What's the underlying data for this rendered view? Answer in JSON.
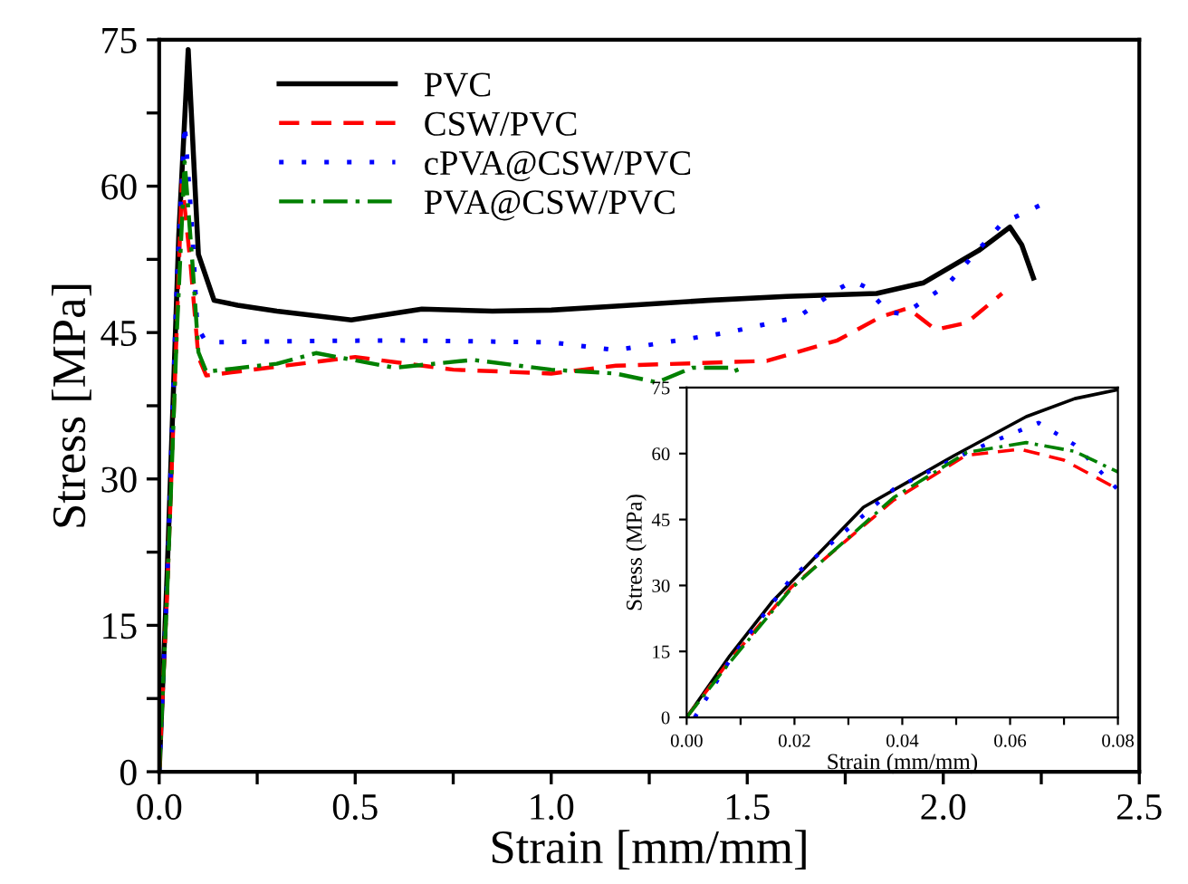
{
  "chart_data": [
    {
      "type": "line",
      "xlabel": "Strain [mm/mm]",
      "ylabel": "Stress [MPa]",
      "xlim": [
        0,
        2.5
      ],
      "ylim": [
        0,
        75
      ],
      "xticks": [
        {
          "value": 0,
          "label": "0.0"
        },
        {
          "value": 0.25,
          "label": null
        },
        {
          "value": 0.5,
          "label": "0.5"
        },
        {
          "value": 0.75,
          "label": null
        },
        {
          "value": 1,
          "label": "1.0"
        },
        {
          "value": 1.25,
          "label": null
        },
        {
          "value": 1.5,
          "label": "1.5"
        },
        {
          "value": 1.75,
          "label": null
        },
        {
          "value": 2,
          "label": "2.0"
        },
        {
          "value": 2.25,
          "label": null
        },
        {
          "value": 2.5,
          "label": "2.5"
        }
      ],
      "yticks": [
        0,
        {
          "value": 7.5,
          "label": null
        },
        15,
        {
          "value": 22.5,
          "label": null
        },
        30,
        {
          "value": 37.5,
          "label": null
        },
        45,
        {
          "value": 52.5,
          "label": null
        },
        60,
        {
          "value": 67.5,
          "label": null
        },
        75
      ],
      "grid": false,
      "legend": "top left",
      "series": [
        {
          "name": "PVC",
          "color": "#000000",
          "line_style": "solid",
          "x": [
            0,
            0.02,
            0.05,
            0.074,
            0.1,
            0.14,
            0.2,
            0.3,
            0.49,
            0.67,
            0.85,
            1.0,
            1.165,
            1.4,
            1.6,
            1.83,
            1.95,
            2.09,
            2.17,
            2.2,
            2.23
          ],
          "values": [
            0,
            20,
            55,
            74,
            53,
            48.3,
            47.8,
            47.2,
            46.3,
            47.4,
            47.2,
            47.3,
            47.7,
            48.3,
            48.7,
            49,
            50.1,
            53.4,
            55.8,
            54,
            50.6
          ]
        },
        {
          "name": "CSW/PVC",
          "color": "#ff0000",
          "line_style": "dashed",
          "x": [
            0,
            0.02,
            0.04,
            0.058,
            0.08,
            0.1,
            0.12,
            0.3,
            0.5,
            0.75,
            1.0,
            1.165,
            1.55,
            1.73,
            1.84,
            1.91,
            1.98,
            2.06,
            2.15
          ],
          "values": [
            0,
            18,
            40,
            60.6,
            52,
            42.5,
            40.6,
            41.5,
            42.5,
            41.2,
            40.8,
            41.6,
            42.1,
            44.2,
            46.6,
            47.5,
            45.3,
            46,
            49
          ]
        },
        {
          "name": "cPVA@CSW/PVC",
          "color": "#0000ff",
          "line_style": "dotted",
          "x": [
            0,
            0.02,
            0.045,
            0.065,
            0.085,
            0.097,
            0.12,
            0.3,
            0.6,
            1.0,
            1.165,
            1.45,
            1.63,
            1.73,
            1.77,
            1.8,
            1.86,
            1.9,
            2.01,
            2.15,
            2.26
          ],
          "values": [
            0,
            19,
            50,
            66.4,
            55,
            45.6,
            44,
            44.1,
            44.2,
            44,
            43.2,
            45,
            46.6,
            49.4,
            50.3,
            49.7,
            47.1,
            46.9,
            49.9,
            56.2,
            58.3
          ]
        },
        {
          "name": "PVA@CSW/PVC",
          "color": "#008000",
          "line_style": "dashdot",
          "x": [
            0,
            0.02,
            0.045,
            0.065,
            0.085,
            0.1,
            0.12,
            0.3,
            0.4,
            0.6,
            0.8,
            1.0,
            1.165,
            1.27,
            1.36,
            1.47,
            1.48
          ],
          "values": [
            0,
            18,
            45,
            62.5,
            52,
            43,
            41,
            41.8,
            42.9,
            41.4,
            42.2,
            41.2,
            40.8,
            39.9,
            41.4,
            41.4,
            40.4
          ]
        }
      ]
    },
    {
      "type": "line",
      "xlabel": "Strain (mm/mm)",
      "ylabel": "Stress (MPa)",
      "xlim": [
        0,
        0.08
      ],
      "ylim": [
        0,
        75
      ],
      "xticks": [
        {
          "value": 0,
          "label": "0.00"
        },
        {
          "value": 0.01,
          "label": null
        },
        {
          "value": 0.02,
          "label": "0.02"
        },
        {
          "value": 0.03,
          "label": null
        },
        {
          "value": 0.04,
          "label": "0.04"
        },
        {
          "value": 0.05,
          "label": null
        },
        {
          "value": 0.06,
          "label": "0.06"
        },
        {
          "value": 0.07,
          "label": null
        },
        {
          "value": 0.08,
          "label": "0.08"
        }
      ],
      "yticks": [
        0,
        15,
        30,
        45,
        60,
        75
      ],
      "grid": false,
      "legend": false,
      "series": [
        {
          "color": "#000000",
          "line_style": "solid",
          "x": [
            0,
            0.008,
            0.016,
            0.0328,
            0.0497,
            0.063,
            0.072,
            0.0799
          ],
          "values": [
            0,
            14,
            26.5,
            47.8,
            59.6,
            68.4,
            72.5,
            74.5
          ]
        },
        {
          "color": "#ff0000",
          "line_style": "dashed",
          "x": [
            0,
            0.008,
            0.0194,
            0.0384,
            0.0518,
            0.0619,
            0.07,
            0.08
          ],
          "values": [
            0,
            13,
            29.6,
            49.4,
            59.6,
            61,
            58.5,
            51.9
          ]
        },
        {
          "color": "#0000ff",
          "line_style": "dotted",
          "x": [
            0.0015,
            0.008,
            0.0194,
            0.0384,
            0.053,
            0.0653,
            0.072,
            0.0799
          ],
          "values": [
            0,
            13,
            31.7,
            51.9,
            60.8,
            67,
            62,
            51.9
          ]
        },
        {
          "color": "#008000",
          "line_style": "dashdot",
          "x": [
            0,
            0.008,
            0.0194,
            0.0384,
            0.052,
            0.063,
            0.072,
            0.08
          ],
          "values": [
            0,
            12.5,
            29.3,
            50,
            60.3,
            62.5,
            60.5,
            55.8
          ]
        }
      ]
    }
  ]
}
